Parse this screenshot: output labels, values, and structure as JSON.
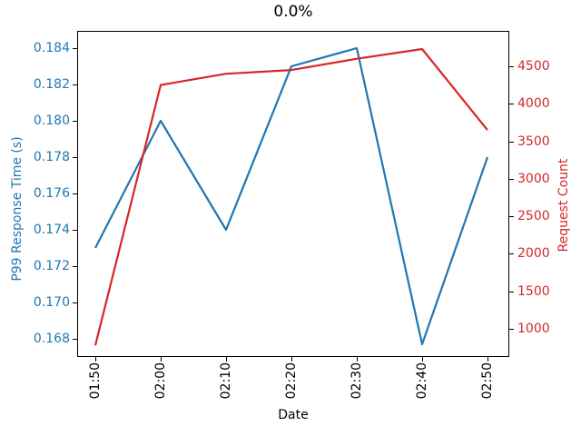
{
  "chart_data": {
    "type": "line",
    "title": "0.0%",
    "xlabel": "Date",
    "grid": false,
    "legend": "none",
    "categories": [
      "01:50",
      "02:00",
      "02:10",
      "02:20",
      "02:30",
      "02:40",
      "02:50"
    ],
    "series": [
      {
        "name": "P99 Response Time (s)",
        "axis": "left",
        "color": "#1f77b4",
        "values": [
          0.173,
          0.18,
          0.174,
          0.183,
          0.184,
          0.1677,
          0.178
        ]
      },
      {
        "name": "Request Count",
        "axis": "right",
        "color": "#d62728",
        "values": [
          780,
          4250,
          4400,
          4450,
          4600,
          4730,
          3650
        ]
      }
    ],
    "axes": {
      "left": {
        "label": "P99 Response Time (s)",
        "color": "#1f77b4",
        "range": [
          0.167,
          0.18495
        ],
        "ticks": [
          0.168,
          0.17,
          0.172,
          0.174,
          0.176,
          0.178,
          0.18,
          0.182,
          0.184
        ],
        "tick_labels": [
          "0.168",
          "0.170",
          "0.172",
          "0.174",
          "0.176",
          "0.178",
          "0.180",
          "0.182",
          "0.184"
        ]
      },
      "right": {
        "label": "Request Count",
        "color": "#d62728",
        "range": [
          625,
          4972
        ],
        "ticks": [
          1000,
          1500,
          2000,
          2500,
          3000,
          3500,
          4000,
          4500
        ],
        "tick_labels": [
          "1000",
          "1500",
          "2000",
          "2500",
          "3000",
          "3500",
          "4000",
          "4500"
        ]
      },
      "x": {
        "label": "Date",
        "tick_labels": [
          "01:50",
          "02:00",
          "02:10",
          "02:20",
          "02:30",
          "02:40",
          "02:50"
        ],
        "tick_rotation_deg": 90
      }
    },
    "frame_color": "#000000"
  }
}
